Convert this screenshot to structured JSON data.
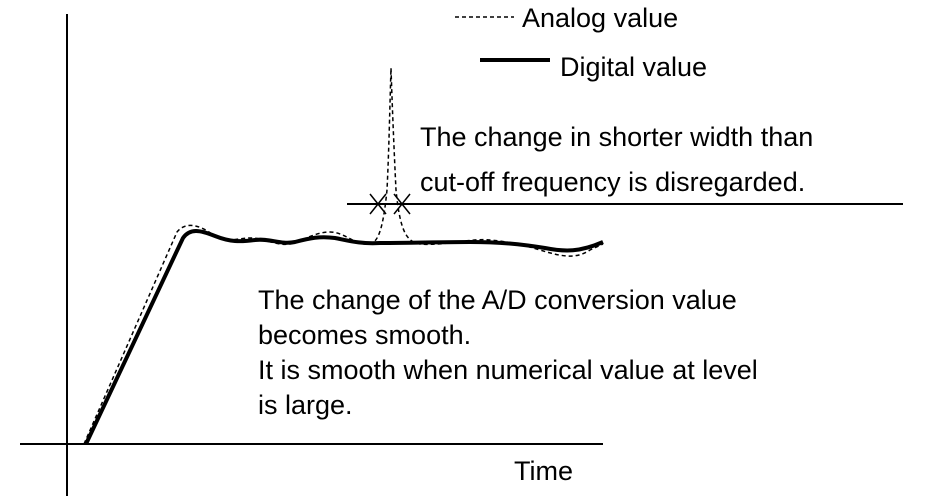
{
  "legend": {
    "analog": "Analog value",
    "digital": "Digital value"
  },
  "annotations": {
    "cutoff": [
      "The change in shorter width than",
      "cut-off frequency is disregarded."
    ],
    "smooth": [
      "The change of the A/D conversion value",
      "becomes smooth.",
      "It is smooth when numerical value at level",
      "is large."
    ]
  },
  "x_axis_label": "Time"
}
